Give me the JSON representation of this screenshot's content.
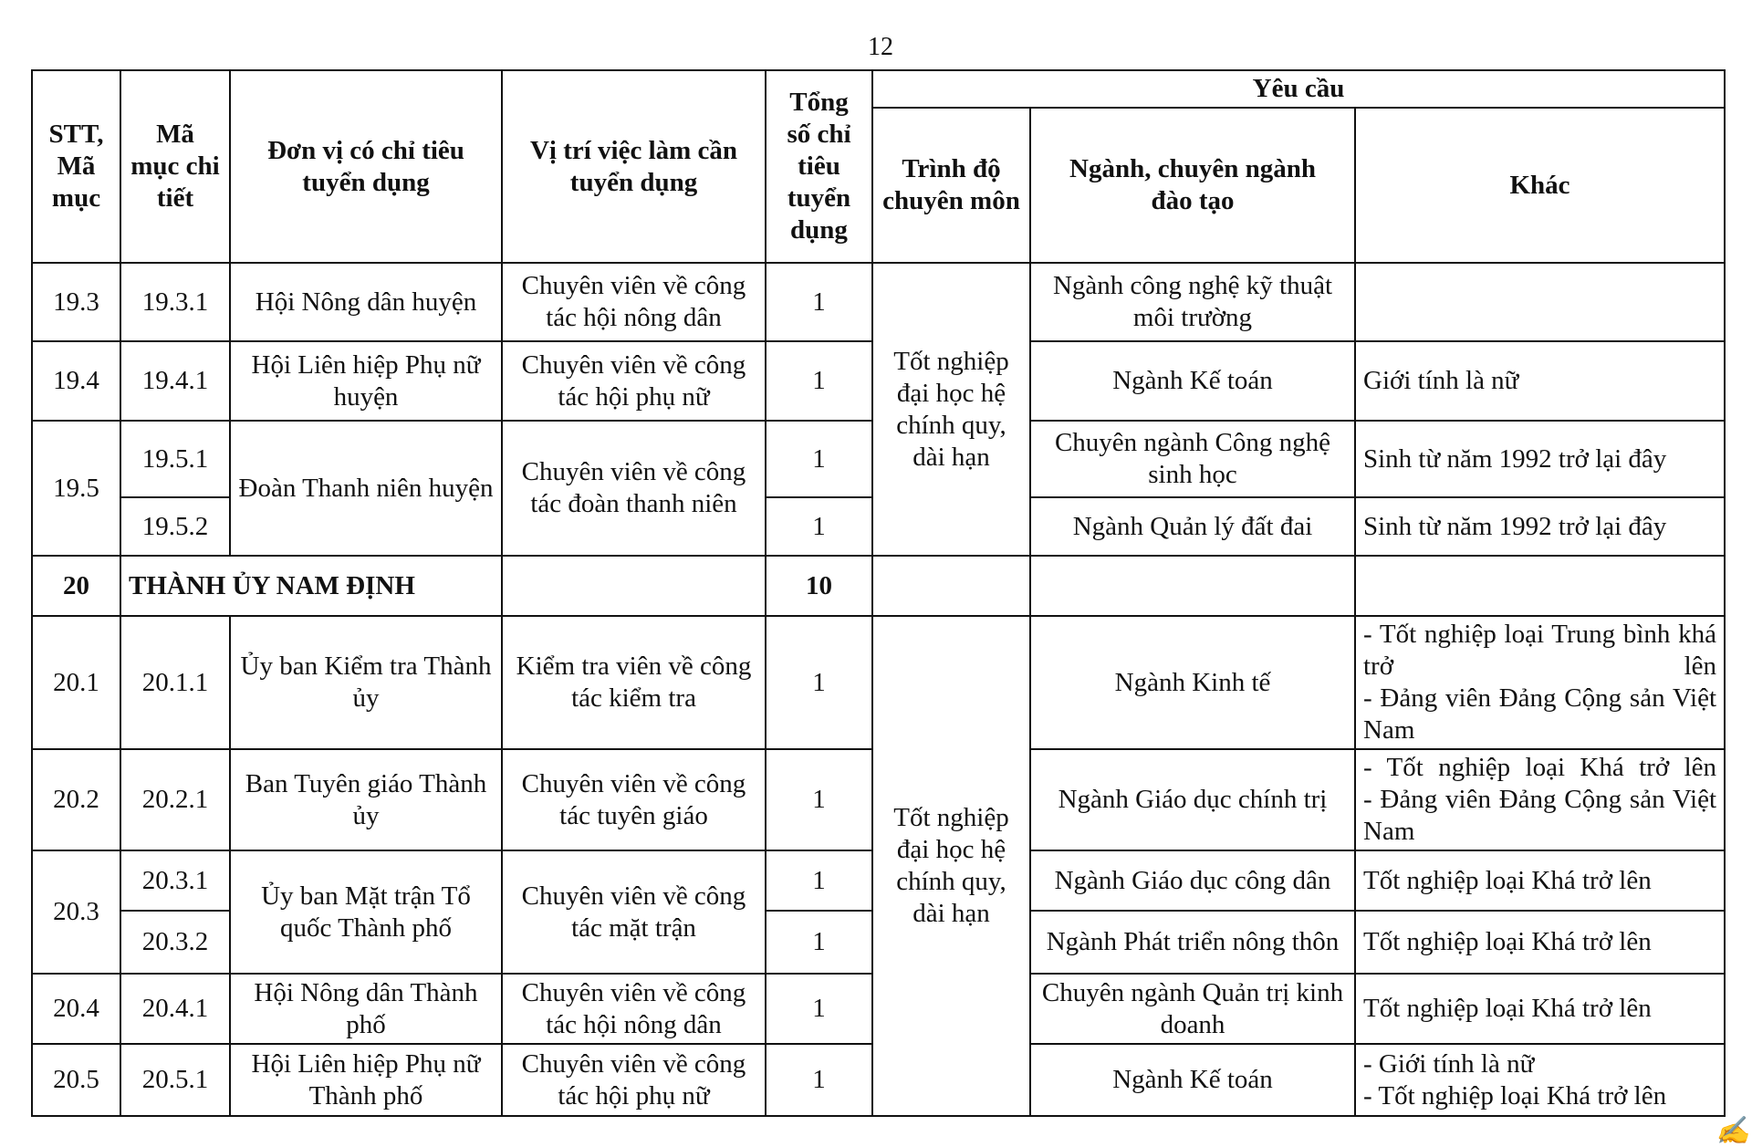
{
  "page_number": "12",
  "headers": {
    "stt": "STT, Mã mục",
    "ma_muc": "Mã mục chi tiết",
    "don_vi": "Đơn vị có chỉ tiêu tuyển dụng",
    "vi_tri": "Vị trí việc làm cần tuyển dụng",
    "tong": "Tổng số chỉ tiêu tuyển dụng",
    "yeu_cau": "Yêu cầu",
    "trinh_do": "Trình độ chuyên môn",
    "nganh": "Ngành, chuyên ngành đào tạo",
    "khac": "Khác"
  },
  "trinh_do_group": "Tốt nghiệp đại học hệ chính quy, dài hạn",
  "rows": [
    {
      "stt": "19.3",
      "ma": "19.3.1",
      "don_vi": "Hội Nông dân huyện",
      "vi_tri": "Chuyên viên về công tác hội nông dân",
      "tong": "1",
      "nganh": "Ngành công nghệ kỹ thuật môi trường",
      "khac": []
    },
    {
      "stt": "19.4",
      "ma": "19.4.1",
      "don_vi": "Hội Liên hiệp Phụ nữ huyện",
      "vi_tri": "Chuyên viên về công tác hội phụ nữ",
      "tong": "1",
      "nganh": "Ngành Kế toán",
      "khac": [
        "Giới tính là nữ"
      ]
    },
    {
      "stt": "19.5",
      "ma": "19.5.1",
      "don_vi": "Đoàn Thanh niên huyện",
      "vi_tri": "Chuyên viên về công tác đoàn thanh niên",
      "tong": "1",
      "nganh": "Chuyên ngành Công nghệ sinh học",
      "khac": [
        "Sinh từ năm 1992 trở lại đây"
      ]
    },
    {
      "ma": "19.5.2",
      "tong": "1",
      "nganh": "Ngành Quản lý đất đai",
      "khac": [
        "Sinh từ năm 1992 trở lại đây"
      ]
    },
    {
      "stt": "20",
      "don_vi": "THÀNH ỦY NAM ĐỊNH",
      "tong": "10"
    },
    {
      "stt": "20.1",
      "ma": "20.1.1",
      "don_vi": "Ủy ban Kiểm tra Thành ủy",
      "vi_tri": "Kiểm tra viên về công tác kiểm tra",
      "tong": "1",
      "nganh": "Ngành Kinh tế",
      "khac": [
        "- Tốt nghiệp loại Trung bình khá trở lên",
        "- Đảng viên Đảng Cộng sản Việt Nam"
      ]
    },
    {
      "stt": "20.2",
      "ma": "20.2.1",
      "don_vi": "Ban Tuyên giáo Thành ủy",
      "vi_tri": "Chuyên viên về công tác tuyên giáo",
      "tong": "1",
      "nganh": "Ngành Giáo dục chính trị",
      "khac": [
        "- Tốt nghiệp loại Khá trở lên",
        "- Đảng viên Đảng Cộng sản Việt Nam"
      ]
    },
    {
      "stt": "20.3",
      "ma": "20.3.1",
      "don_vi": "Ủy ban Mặt trận Tổ quốc Thành phố",
      "vi_tri": "Chuyên viên về công tác mặt trận",
      "tong": "1",
      "nganh": "Ngành Giáo dục công dân",
      "khac": [
        "Tốt nghiệp loại Khá trở lên"
      ]
    },
    {
      "ma": "20.3.2",
      "tong": "1",
      "nganh": "Ngành Phát triển nông thôn",
      "khac": [
        "Tốt nghiệp loại Khá trở lên"
      ]
    },
    {
      "stt": "20.4",
      "ma": "20.4.1",
      "don_vi": "Hội Nông dân Thành phố",
      "vi_tri": "Chuyên viên về công tác hội nông dân",
      "tong": "1",
      "nganh": "Chuyên ngành Quản trị kinh doanh",
      "khac": [
        "Tốt nghiệp loại Khá trở lên"
      ]
    },
    {
      "stt": "20.5",
      "ma": "20.5.1",
      "don_vi": "Hội Liên hiệp Phụ nữ Thành phố",
      "vi_tri": "Chuyên viên về công tác hội phụ nữ",
      "tong": "1",
      "nganh": "Ngành Kế toán",
      "khac": [
        "- Giới tính là nữ",
        "- Tốt nghiệp loại Khá trở lên"
      ]
    }
  ]
}
